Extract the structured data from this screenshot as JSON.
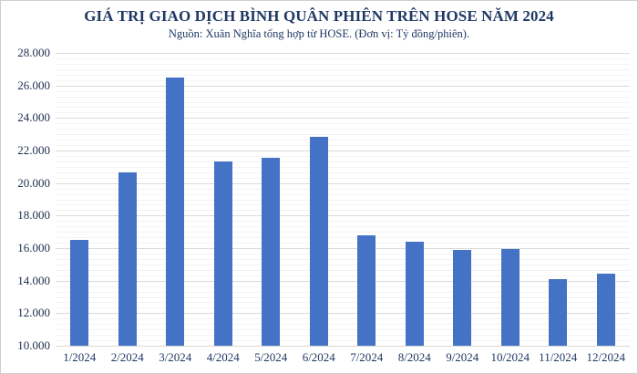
{
  "title": "GIÁ TRỊ GIAO DỊCH BÌNH QUÂN PHIÊN TRÊN HOSE NĂM 2024",
  "subtitle": "Nguồn: Xuân Nghĩa tổng hợp từ HOSE. (Đơn vị: Tỷ đồng/phiên).",
  "colors": {
    "bar": "#4472c4",
    "title_text": "#1f3864",
    "axis_text": "#20304f",
    "gridline_major": "#d9d9d9",
    "gridline_minor": "#f3f3f3",
    "axis_line": "#bfbfbf",
    "frame_border": "#cfcfcf",
    "background": "#ffffff"
  },
  "chart_data": {
    "type": "bar",
    "title": "GIÁ TRỊ GIAO DỊCH BÌNH QUÂN PHIÊN TRÊN HOSE NĂM 2024",
    "subtitle": "Nguồn: Xuân Nghĩa tổng hợp từ HOSE. (Đơn vị: Tỷ đồng/phiên).",
    "unit": "Tỷ đồng/phiên",
    "categories": [
      "1/2024",
      "2/2024",
      "3/2024",
      "4/2024",
      "5/2024",
      "6/2024",
      "7/2024",
      "8/2024",
      "9/2024",
      "10/2024",
      "11/2024",
      "12/2024"
    ],
    "values": [
      16500,
      20650,
      26500,
      21300,
      21550,
      22850,
      16800,
      16400,
      15900,
      15950,
      14100,
      14450
    ],
    "ylim": [
      10000,
      28000
    ],
    "y_major_step": 2000,
    "y_minor_divisions": 6,
    "y_tick_labels": [
      "10.000",
      "12.000",
      "14.000",
      "16.000",
      "18.000",
      "20.000",
      "22.000",
      "24.000",
      "26.000",
      "28.000"
    ],
    "grid": "major+minor",
    "legend": "none",
    "bar_color": "#4472c4"
  }
}
